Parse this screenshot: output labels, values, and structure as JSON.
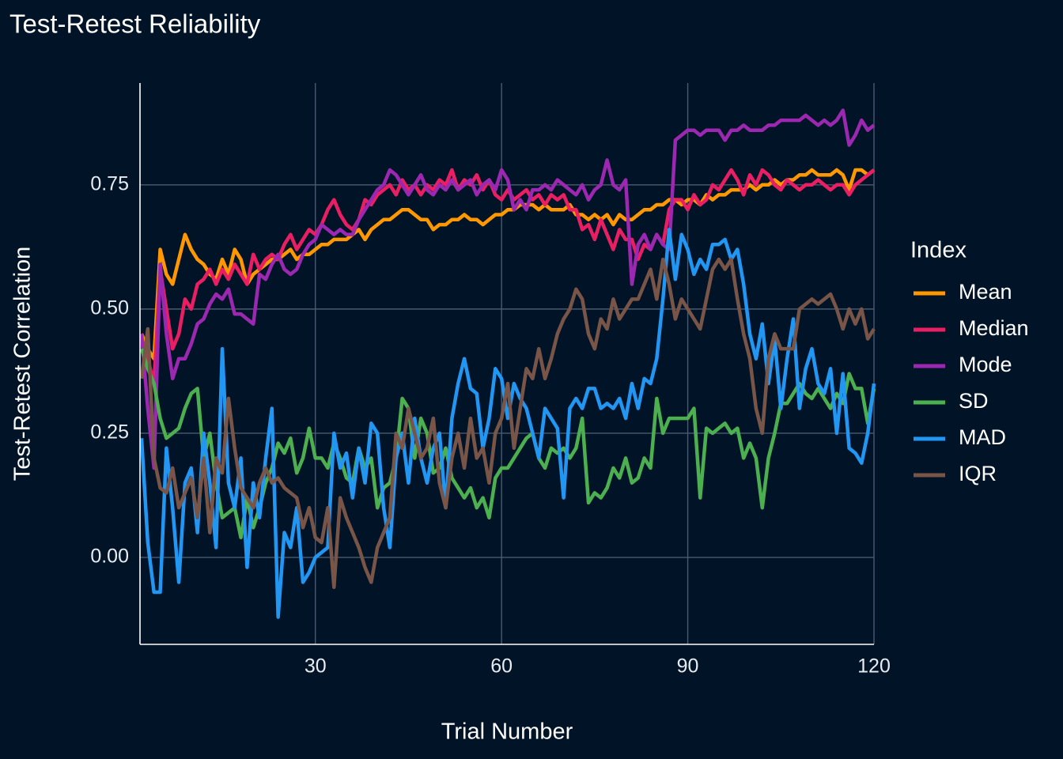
{
  "chart_data": {
    "type": "line",
    "title": "Test-Retest Reliability",
    "x_label": "Trial Number",
    "y_label": "Test-Retest Correlation",
    "legend_title": "Index",
    "legend": "right",
    "grid": true,
    "xlim": [
      2,
      120
    ],
    "xticks": [
      30,
      60,
      90,
      120
    ],
    "ylim": [
      -0.175,
      0.955
    ],
    "yticks": [
      {
        "value": 0,
        "label": "0.00"
      },
      {
        "value": 0.25,
        "label": "0.25"
      },
      {
        "value": 0.5,
        "label": "0.50"
      },
      {
        "value": 0.75,
        "label": "0.75"
      }
    ],
    "x": [
      2,
      3,
      4,
      5,
      6,
      7,
      8,
      9,
      10,
      11,
      12,
      13,
      14,
      15,
      16,
      17,
      18,
      19,
      20,
      21,
      22,
      23,
      24,
      25,
      26,
      27,
      28,
      29,
      30,
      31,
      32,
      33,
      34,
      35,
      36,
      37,
      38,
      39,
      40,
      41,
      42,
      43,
      44,
      45,
      46,
      47,
      48,
      49,
      50,
      51,
      52,
      53,
      54,
      55,
      56,
      57,
      58,
      59,
      60,
      61,
      62,
      63,
      64,
      65,
      66,
      67,
      68,
      69,
      70,
      71,
      72,
      73,
      74,
      75,
      76,
      77,
      78,
      79,
      80,
      81,
      82,
      83,
      84,
      85,
      86,
      87,
      88,
      89,
      90,
      91,
      92,
      93,
      94,
      95,
      96,
      97,
      98,
      99,
      100,
      101,
      102,
      103,
      104,
      105,
      106,
      107,
      108,
      109,
      110,
      111,
      112,
      113,
      114,
      115,
      116,
      117,
      118,
      119,
      120
    ],
    "series": [
      {
        "name": "Mean",
        "color": "#ff9800",
        "values": [
          0.45,
          0.42,
          0.4,
          0.62,
          0.57,
          0.55,
          0.6,
          0.65,
          0.62,
          0.6,
          0.59,
          0.57,
          0.56,
          0.6,
          0.57,
          0.62,
          0.6,
          0.55,
          0.57,
          0.58,
          0.59,
          0.6,
          0.6,
          0.61,
          0.62,
          0.6,
          0.61,
          0.61,
          0.62,
          0.63,
          0.63,
          0.64,
          0.64,
          0.64,
          0.65,
          0.66,
          0.64,
          0.66,
          0.67,
          0.68,
          0.68,
          0.69,
          0.7,
          0.7,
          0.69,
          0.68,
          0.68,
          0.66,
          0.67,
          0.67,
          0.68,
          0.68,
          0.69,
          0.68,
          0.68,
          0.67,
          0.68,
          0.69,
          0.69,
          0.7,
          0.7,
          0.71,
          0.71,
          0.71,
          0.7,
          0.71,
          0.7,
          0.7,
          0.7,
          0.71,
          0.69,
          0.69,
          0.68,
          0.69,
          0.68,
          0.69,
          0.67,
          0.69,
          0.68,
          0.68,
          0.69,
          0.7,
          0.7,
          0.71,
          0.71,
          0.72,
          0.72,
          0.71,
          0.72,
          0.72,
          0.71,
          0.73,
          0.72,
          0.73,
          0.73,
          0.74,
          0.74,
          0.74,
          0.75,
          0.74,
          0.75,
          0.75,
          0.76,
          0.75,
          0.76,
          0.76,
          0.77,
          0.77,
          0.78,
          0.77,
          0.77,
          0.77,
          0.78,
          0.77,
          0.74,
          0.78,
          0.78,
          0.77,
          0.78
        ]
      },
      {
        "name": "Median",
        "color": "#e91e63",
        "values": [
          0.44,
          0.4,
          0.35,
          0.58,
          0.5,
          0.42,
          0.45,
          0.52,
          0.5,
          0.55,
          0.56,
          0.58,
          0.55,
          0.58,
          0.56,
          0.59,
          0.57,
          0.55,
          0.61,
          0.58,
          0.6,
          0.61,
          0.6,
          0.63,
          0.65,
          0.62,
          0.64,
          0.66,
          0.65,
          0.67,
          0.7,
          0.72,
          0.69,
          0.67,
          0.66,
          0.68,
          0.72,
          0.71,
          0.73,
          0.74,
          0.75,
          0.73,
          0.76,
          0.74,
          0.75,
          0.73,
          0.75,
          0.74,
          0.76,
          0.75,
          0.78,
          0.74,
          0.76,
          0.75,
          0.77,
          0.74,
          0.76,
          0.73,
          0.72,
          0.74,
          0.72,
          0.73,
          0.74,
          0.72,
          0.73,
          0.71,
          0.73,
          0.72,
          0.73,
          0.7,
          0.7,
          0.66,
          0.67,
          0.64,
          0.68,
          0.65,
          0.62,
          0.66,
          0.64,
          0.64,
          0.6,
          0.63,
          0.62,
          0.65,
          0.63,
          0.7,
          0.72,
          0.72,
          0.7,
          0.73,
          0.71,
          0.72,
          0.75,
          0.74,
          0.76,
          0.78,
          0.76,
          0.73,
          0.77,
          0.75,
          0.78,
          0.77,
          0.75,
          0.74,
          0.76,
          0.75,
          0.74,
          0.75,
          0.75,
          0.76,
          0.75,
          0.74,
          0.75,
          0.75,
          0.73,
          0.75,
          0.76,
          0.77,
          0.78
        ]
      },
      {
        "name": "Mode",
        "color": "#9c27b0",
        "values": [
          0.45,
          0.3,
          0.18,
          0.59,
          0.45,
          0.36,
          0.4,
          0.4,
          0.43,
          0.47,
          0.48,
          0.51,
          0.53,
          0.52,
          0.54,
          0.49,
          0.49,
          0.48,
          0.47,
          0.57,
          0.56,
          0.59,
          0.61,
          0.58,
          0.57,
          0.58,
          0.61,
          0.63,
          0.64,
          0.67,
          0.66,
          0.65,
          0.66,
          0.65,
          0.65,
          0.68,
          0.7,
          0.72,
          0.74,
          0.75,
          0.78,
          0.77,
          0.75,
          0.73,
          0.75,
          0.77,
          0.74,
          0.73,
          0.75,
          0.74,
          0.76,
          0.74,
          0.75,
          0.76,
          0.73,
          0.75,
          0.76,
          0.74,
          0.78,
          0.76,
          0.7,
          0.72,
          0.7,
          0.74,
          0.74,
          0.75,
          0.74,
          0.76,
          0.75,
          0.74,
          0.73,
          0.75,
          0.72,
          0.74,
          0.75,
          0.8,
          0.75,
          0.74,
          0.76,
          0.55,
          0.63,
          0.65,
          0.62,
          0.65,
          0.63,
          0.62,
          0.84,
          0.85,
          0.86,
          0.86,
          0.85,
          0.86,
          0.86,
          0.86,
          0.84,
          0.86,
          0.86,
          0.87,
          0.86,
          0.86,
          0.86,
          0.87,
          0.87,
          0.88,
          0.88,
          0.88,
          0.88,
          0.89,
          0.88,
          0.87,
          0.88,
          0.87,
          0.88,
          0.9,
          0.83,
          0.85,
          0.88,
          0.86,
          0.87
        ]
      },
      {
        "name": "SD",
        "color": "#4caf50",
        "values": [
          0.42,
          0.38,
          0.35,
          0.28,
          0.24,
          0.25,
          0.26,
          0.3,
          0.33,
          0.34,
          0.2,
          0.25,
          0.15,
          0.08,
          0.09,
          0.1,
          0.04,
          0.12,
          0.06,
          0.1,
          0.15,
          0.18,
          0.23,
          0.21,
          0.24,
          0.17,
          0.2,
          0.26,
          0.2,
          0.2,
          0.18,
          0.23,
          0.2,
          0.16,
          0.15,
          0.22,
          0.18,
          0.2,
          0.1,
          0.14,
          0.15,
          0.2,
          0.32,
          0.3,
          0.2,
          0.28,
          0.25,
          0.17,
          0.18,
          0.22,
          0.16,
          0.14,
          0.12,
          0.14,
          0.1,
          0.12,
          0.08,
          0.16,
          0.18,
          0.18,
          0.2,
          0.22,
          0.24,
          0.25,
          0.2,
          0.18,
          0.22,
          0.21,
          0.22,
          0.2,
          0.22,
          0.28,
          0.11,
          0.13,
          0.12,
          0.14,
          0.18,
          0.16,
          0.2,
          0.15,
          0.16,
          0.2,
          0.18,
          0.32,
          0.25,
          0.28,
          0.28,
          0.28,
          0.28,
          0.3,
          0.12,
          0.26,
          0.25,
          0.26,
          0.27,
          0.25,
          0.26,
          0.2,
          0.23,
          0.2,
          0.1,
          0.2,
          0.25,
          0.31,
          0.31,
          0.33,
          0.35,
          0.33,
          0.32,
          0.34,
          0.32,
          0.3,
          0.33,
          0.31,
          0.37,
          0.34,
          0.34,
          0.27,
          0.34
        ]
      },
      {
        "name": "MAD",
        "color": "#2196f3",
        "values": [
          0.24,
          0.03,
          -0.07,
          -0.07,
          0.22,
          0.1,
          -0.05,
          0.15,
          0.18,
          0.05,
          0.25,
          0.15,
          0.02,
          0.42,
          0.15,
          0.1,
          0.2,
          -0.02,
          0.15,
          0.08,
          0.2,
          0.3,
          -0.12,
          0.05,
          0.02,
          0.1,
          -0.05,
          -0.03,
          0.0,
          0.01,
          0.02,
          0.25,
          0.18,
          0.21,
          0.12,
          0.22,
          0.15,
          0.27,
          0.25,
          0.1,
          0.02,
          0.2,
          0.25,
          0.15,
          0.28,
          0.2,
          0.15,
          0.22,
          0.25,
          0.1,
          0.28,
          0.35,
          0.4,
          0.34,
          0.33,
          0.22,
          0.28,
          0.38,
          0.36,
          0.28,
          0.35,
          0.32,
          0.3,
          0.25,
          0.2,
          0.3,
          0.28,
          0.26,
          0.12,
          0.3,
          0.32,
          0.3,
          0.34,
          0.34,
          0.3,
          0.31,
          0.3,
          0.32,
          0.28,
          0.35,
          0.3,
          0.36,
          0.35,
          0.4,
          0.52,
          0.66,
          0.56,
          0.65,
          0.62,
          0.57,
          0.6,
          0.58,
          0.63,
          0.63,
          0.64,
          0.6,
          0.62,
          0.55,
          0.45,
          0.4,
          0.47,
          0.35,
          0.44,
          0.3,
          0.4,
          0.48,
          0.3,
          0.38,
          0.42,
          0.35,
          0.33,
          0.38,
          0.25,
          0.37,
          0.22,
          0.21,
          0.19,
          0.25,
          0.35
        ]
      },
      {
        "name": "IQR",
        "color": "#795548",
        "values": [
          0.36,
          0.46,
          0.2,
          0.14,
          0.13,
          0.18,
          0.1,
          0.13,
          0.16,
          0.08,
          0.2,
          0.05,
          0.2,
          0.17,
          0.32,
          0.22,
          0.14,
          0.12,
          0.1,
          0.15,
          0.18,
          0.15,
          0.16,
          0.14,
          0.13,
          0.12,
          0.06,
          0.1,
          0.04,
          0.03,
          0.1,
          -0.06,
          0.12,
          0.08,
          0.05,
          0.02,
          -0.02,
          -0.05,
          0.02,
          0.05,
          0.08,
          0.25,
          0.22,
          0.3,
          0.25,
          0.2,
          0.22,
          0.28,
          0.15,
          0.1,
          0.2,
          0.25,
          0.18,
          0.28,
          0.2,
          0.22,
          0.15,
          0.25,
          0.28,
          0.35,
          0.22,
          0.3,
          0.38,
          0.36,
          0.42,
          0.36,
          0.4,
          0.45,
          0.48,
          0.5,
          0.54,
          0.52,
          0.45,
          0.42,
          0.48,
          0.46,
          0.52,
          0.48,
          0.5,
          0.52,
          0.52,
          0.55,
          0.58,
          0.52,
          0.6,
          0.55,
          0.48,
          0.52,
          0.5,
          0.48,
          0.46,
          0.52,
          0.58,
          0.6,
          0.58,
          0.6,
          0.52,
          0.45,
          0.4,
          0.3,
          0.25,
          0.4,
          0.45,
          0.42,
          0.42,
          0.42,
          0.5,
          0.51,
          0.52,
          0.51,
          0.52,
          0.53,
          0.5,
          0.46,
          0.5,
          0.47,
          0.5,
          0.44,
          0.46
        ]
      }
    ]
  }
}
